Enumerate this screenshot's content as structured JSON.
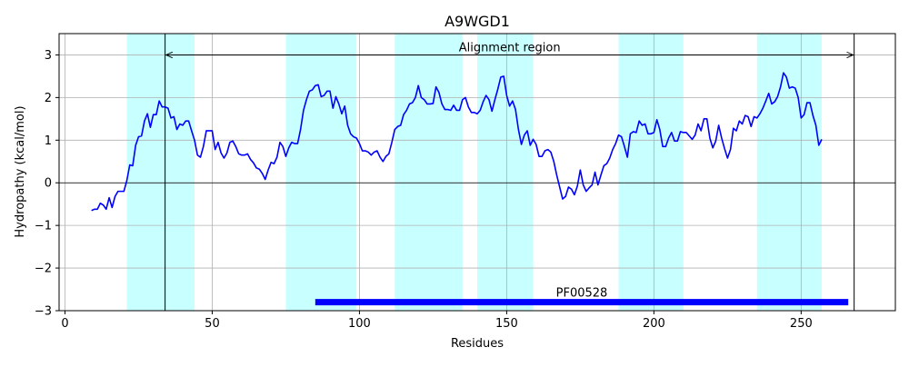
{
  "chart_data": {
    "type": "line",
    "title": "A9WGD1",
    "xlabel": "Residues",
    "ylabel": "Hydropathy (kcal/mol)",
    "xlim": [
      -2,
      282
    ],
    "ylim": [
      -3,
      3.5
    ],
    "xticks": [
      0,
      50,
      100,
      150,
      200,
      250
    ],
    "yticks": [
      -3,
      -2,
      -1,
      0,
      1,
      2,
      3
    ],
    "grid": true,
    "line_color": "#0000ff",
    "band_color": "#c8ffff",
    "marker_color": "#0000ff",
    "shaded_regions": [
      [
        21,
        44
      ],
      [
        75,
        99
      ],
      [
        112,
        135
      ],
      [
        140,
        159
      ],
      [
        188,
        210
      ],
      [
        235,
        257
      ]
    ],
    "vertical_lines": [
      34,
      268
    ],
    "alignment": {
      "label": "Alignment region",
      "start": 34,
      "end": 268,
      "y": 3.0
    },
    "domain": {
      "label": "PF00528",
      "start": 85,
      "end": 266,
      "y": -2.8
    },
    "series": [
      {
        "x": [
          9,
          10,
          11,
          12,
          13,
          14,
          15,
          16,
          17,
          18,
          19,
          20,
          21,
          22,
          23,
          24,
          25,
          26,
          27,
          28,
          29,
          30,
          31,
          32,
          33,
          34,
          35,
          36,
          37,
          38,
          39,
          40,
          41,
          42,
          43,
          44,
          45,
          46,
          47,
          48,
          49,
          50,
          51,
          52,
          53,
          54,
          55,
          56,
          57,
          58,
          59,
          60,
          61,
          62,
          63,
          64,
          65,
          66,
          67,
          68,
          69,
          70,
          71,
          72,
          73,
          74,
          75,
          76,
          77,
          78,
          79,
          80,
          81,
          82,
          83,
          84,
          85,
          86,
          87,
          88,
          89,
          90,
          91,
          92,
          93,
          94,
          95,
          96,
          97,
          98,
          99,
          100,
          101,
          102,
          103,
          104,
          105,
          106,
          107,
          108,
          109,
          110,
          111,
          112,
          113,
          114,
          115,
          116,
          117,
          118,
          119,
          120,
          121,
          122,
          123,
          124,
          125,
          126,
          127,
          128,
          129,
          130,
          131,
          132,
          133,
          134,
          135,
          136,
          137,
          138,
          139,
          140,
          141,
          142,
          143,
          144,
          145,
          146,
          147,
          148,
          149,
          150,
          151,
          152,
          153,
          154,
          155,
          156,
          157,
          158,
          159,
          160,
          161,
          162,
          163,
          164,
          165,
          166,
          167,
          168,
          169,
          170,
          171,
          172,
          173,
          174,
          175,
          176,
          177,
          178,
          179,
          180,
          181,
          182,
          183,
          184,
          185,
          186,
          187,
          188,
          189,
          190,
          191,
          192,
          193,
          194,
          195,
          196,
          197,
          198,
          199,
          200,
          201,
          202,
          203,
          204,
          205,
          206,
          207,
          208,
          209,
          210,
          211,
          212,
          213,
          214,
          215,
          216,
          217,
          218,
          219,
          220,
          221,
          222,
          223,
          224,
          225,
          226,
          227,
          228,
          229,
          230,
          231,
          232,
          233,
          234,
          235,
          236,
          237,
          238,
          239,
          240,
          241,
          242,
          243,
          244,
          245,
          246,
          247,
          248,
          249,
          250,
          251,
          252,
          253,
          254,
          255,
          256,
          257
        ],
        "y": [
          -0.65,
          -0.62,
          -0.62,
          -0.48,
          -0.52,
          -0.62,
          -0.35,
          -0.58,
          -0.32,
          -0.2,
          -0.2,
          -0.2,
          0.05,
          0.42,
          0.4,
          0.88,
          1.08,
          1.1,
          1.45,
          1.62,
          1.3,
          1.6,
          1.6,
          1.92,
          1.78,
          1.78,
          1.75,
          1.52,
          1.55,
          1.25,
          1.38,
          1.35,
          1.45,
          1.45,
          1.22,
          1.0,
          0.65,
          0.6,
          0.85,
          1.22,
          1.22,
          1.22,
          0.78,
          0.95,
          0.7,
          0.58,
          0.7,
          0.95,
          0.98,
          0.85,
          0.68,
          0.65,
          0.65,
          0.68,
          0.55,
          0.47,
          0.35,
          0.32,
          0.22,
          0.08,
          0.3,
          0.48,
          0.45,
          0.6,
          0.95,
          0.85,
          0.62,
          0.82,
          0.95,
          0.92,
          0.92,
          1.25,
          1.7,
          1.95,
          2.15,
          2.18,
          2.28,
          2.3,
          2.02,
          2.05,
          2.15,
          2.15,
          1.75,
          2.02,
          1.85,
          1.62,
          1.8,
          1.35,
          1.15,
          1.08,
          1.05,
          0.92,
          0.75,
          0.75,
          0.72,
          0.65,
          0.72,
          0.75,
          0.6,
          0.5,
          0.62,
          0.68,
          0.95,
          1.25,
          1.32,
          1.35,
          1.6,
          1.7,
          1.85,
          1.88,
          2.0,
          2.28,
          2.0,
          1.95,
          1.85,
          1.85,
          1.86,
          2.25,
          2.12,
          1.85,
          1.72,
          1.72,
          1.7,
          1.82,
          1.7,
          1.7,
          1.95,
          2.0,
          1.78,
          1.65,
          1.65,
          1.62,
          1.7,
          1.9,
          2.05,
          1.95,
          1.68,
          1.95,
          2.2,
          2.48,
          2.5,
          2.05,
          1.8,
          1.92,
          1.72,
          1.25,
          0.9,
          1.12,
          1.22,
          0.88,
          1.02,
          0.9,
          0.62,
          0.62,
          0.75,
          0.78,
          0.72,
          0.5,
          0.18,
          -0.1,
          -0.38,
          -0.32,
          -0.1,
          -0.15,
          -0.28,
          -0.08,
          0.3,
          -0.05,
          -0.2,
          -0.12,
          -0.05,
          0.25,
          -0.05,
          0.18,
          0.4,
          0.45,
          0.58,
          0.78,
          0.92,
          1.12,
          1.08,
          0.85,
          0.6,
          1.15,
          1.2,
          1.18,
          1.45,
          1.35,
          1.38,
          1.15,
          1.15,
          1.18,
          1.48,
          1.25,
          0.85,
          0.85,
          1.05,
          1.18,
          0.98,
          0.98,
          1.2,
          1.18,
          1.18,
          1.1,
          1.02,
          1.12,
          1.38,
          1.22,
          1.5,
          1.5,
          1.05,
          0.82,
          0.98,
          1.35,
          1.05,
          0.8,
          0.58,
          0.78,
          1.28,
          1.22,
          1.45,
          1.38,
          1.58,
          1.55,
          1.32,
          1.55,
          1.52,
          1.62,
          1.75,
          1.92,
          2.1,
          1.85,
          1.9,
          2.02,
          2.25,
          2.58,
          2.48,
          2.22,
          2.25,
          2.22,
          2.0,
          1.52,
          1.6,
          1.88,
          1.88,
          1.58,
          1.35,
          0.88,
          1.02
        ]
      }
    ]
  }
}
